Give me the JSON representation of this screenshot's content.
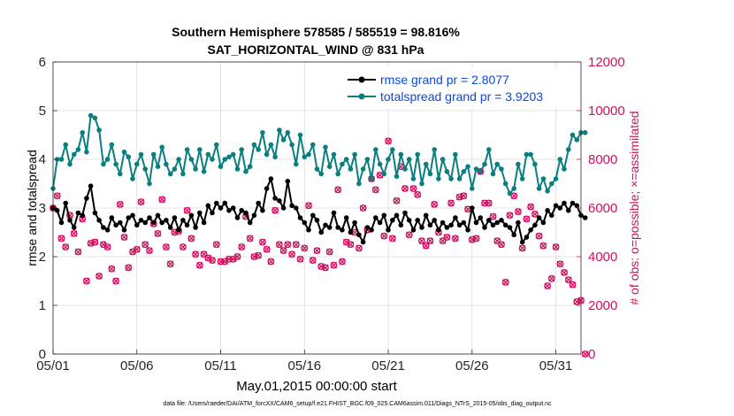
{
  "chart_data": {
    "type": "line",
    "title": "Southern Hemisphere 578585 / 585519 = 98.816%",
    "subtitle": "SAT_HORIZONTAL_WIND @ 831 hPa",
    "xlabel": "May.01,2015 00:00:00 start",
    "ylabel": "rmse and totalspread",
    "y2label": "# of obs: o=possible; ×=assimilated",
    "footnote": "data file: /Users/raeder/DAI/ATM_forcXX/CAM6_setup/f.e21.FHIST_BGC.f09_025.CAM6assim.011/Diags_NTrS_2015-05/obs_diag_output.nc",
    "xlim": [
      0,
      31.5
    ],
    "ylim": [
      0,
      6
    ],
    "y2lim": [
      0,
      12000
    ],
    "xticks": [
      {
        "label": "05/01",
        "value": 0
      },
      {
        "label": "05/06",
        "value": 5
      },
      {
        "label": "05/11",
        "value": 10
      },
      {
        "label": "05/16",
        "value": 15
      },
      {
        "label": "05/21",
        "value": 20
      },
      {
        "label": "05/26",
        "value": 25
      },
      {
        "label": "05/31",
        "value": 30
      }
    ],
    "yticks": [
      "0",
      "1",
      "2",
      "3",
      "4",
      "5",
      "6"
    ],
    "y2ticks": [
      "0",
      "2000",
      "4000",
      "6000",
      "8000",
      "10000",
      "12000"
    ],
    "legend_position": "top-right",
    "series": [
      {
        "name": "rmse grand pr = 2.8077",
        "color": "#000000",
        "axis": "left",
        "x0": 0,
        "dx": 0.25,
        "values": [
          3.0,
          2.95,
          2.7,
          3.1,
          2.75,
          2.6,
          2.9,
          2.85,
          3.2,
          3.45,
          2.9,
          2.75,
          2.6,
          2.55,
          2.8,
          2.65,
          2.7,
          2.55,
          2.8,
          2.85,
          2.65,
          2.75,
          2.7,
          2.8,
          2.7,
          2.85,
          2.7,
          2.75,
          2.6,
          2.8,
          2.55,
          2.75,
          2.65,
          2.85,
          2.6,
          2.9,
          2.7,
          3.05,
          2.9,
          3.1,
          3.0,
          3.1,
          2.95,
          3.0,
          2.8,
          2.95,
          2.9,
          2.7,
          2.85,
          3.1,
          2.95,
          3.4,
          3.6,
          3.2,
          3.15,
          3.0,
          3.55,
          3.05,
          3.0,
          2.8,
          2.7,
          2.55,
          2.85,
          2.75,
          2.5,
          2.65,
          2.6,
          2.9,
          2.6,
          2.55,
          2.8,
          2.5,
          2.7,
          2.45,
          2.3,
          2.6,
          2.55,
          2.8,
          2.7,
          2.85,
          2.55,
          2.75,
          2.85,
          2.65,
          2.9,
          2.75,
          2.55,
          2.75,
          2.6,
          2.85,
          2.65,
          2.75,
          2.55,
          2.7,
          2.6,
          2.65,
          2.8,
          2.65,
          2.7,
          2.55,
          3.0,
          2.7,
          2.8,
          2.6,
          2.75,
          2.65,
          2.7,
          2.75,
          2.65,
          2.6,
          2.45,
          2.7,
          2.3,
          2.4,
          2.55,
          2.65,
          2.8,
          2.7,
          2.95,
          2.85,
          3.05,
          3.0,
          3.1,
          2.95,
          3.1,
          3.05,
          2.85,
          2.8
        ]
      },
      {
        "name": "totalspread grand pr = 3.9203",
        "color": "#0a7f7f",
        "axis": "left",
        "x0": 0,
        "dx": 0.25,
        "values": [
          3.4,
          4.0,
          4.0,
          4.3,
          3.9,
          4.1,
          4.2,
          4.55,
          4.15,
          4.9,
          4.85,
          4.6,
          3.9,
          4.0,
          4.3,
          3.9,
          3.7,
          4.15,
          4.05,
          3.6,
          3.9,
          4.1,
          3.8,
          3.5,
          4.1,
          3.85,
          4.25,
          3.9,
          3.7,
          3.8,
          4.0,
          3.7,
          4.2,
          4.0,
          3.8,
          4.2,
          3.75,
          4.1,
          4.0,
          4.3,
          3.85,
          4.0,
          4.05,
          4.1,
          3.8,
          4.2,
          3.75,
          3.85,
          4.3,
          4.2,
          4.55,
          4.1,
          4.3,
          4.05,
          4.6,
          4.4,
          4.55,
          4.3,
          3.9,
          4.5,
          4.05,
          4.1,
          4.3,
          3.8,
          3.7,
          4.25,
          3.85,
          4.1,
          3.7,
          3.9,
          4.0,
          3.8,
          4.1,
          3.5,
          3.8,
          4.0,
          3.6,
          4.2,
          3.9,
          3.7,
          4.0,
          4.2,
          3.65,
          4.1,
          3.8,
          4.0,
          3.6,
          4.1,
          3.5,
          3.9,
          3.7,
          4.2,
          3.6,
          4.0,
          3.75,
          3.6,
          4.1,
          3.6,
          3.75,
          3.85,
          3.4,
          3.8,
          3.75,
          3.9,
          4.2,
          3.7,
          3.9,
          3.8,
          3.5,
          3.3,
          3.4,
          3.9,
          3.6,
          4.1,
          4.1,
          3.9,
          3.4,
          3.6,
          3.35,
          3.5,
          3.6,
          4.0,
          3.8,
          4.2,
          4.5,
          4.4,
          4.55,
          4.55
        ]
      },
      {
        "name": "possible obs",
        "color": "#d0105e",
        "axis": "right",
        "x0": 0,
        "dx": 0.25,
        "values": [
          6000,
          6500,
          4750,
          4400,
          5700,
          4950,
          4200,
          5550,
          3000,
          4550,
          4600,
          3200,
          4500,
          4400,
          3500,
          3000,
          6150,
          4800,
          3550,
          4200,
          4300,
          6250,
          4500,
          4250,
          5350,
          4950,
          6350,
          4400,
          3700,
          5000,
          5050,
          4400,
          5900,
          4750,
          4100,
          3650,
          4100,
          3950,
          3850,
          4500,
          3800,
          3800,
          3900,
          3900,
          4000,
          4400,
          5650,
          4750,
          4000,
          4050,
          4600,
          4300,
          3800,
          5900,
          4500,
          4250,
          4500,
          4100,
          4500,
          3900,
          4350,
          6100,
          3850,
          4250,
          3600,
          3550,
          4200,
          3650,
          6750,
          3800,
          4600,
          4500,
          5000,
          4350,
          6000,
          5100,
          7200,
          6750,
          7350,
          4850,
          8750,
          4750,
          6300,
          7700,
          6800,
          4900,
          6800,
          6550,
          4650,
          4450,
          4650,
          6150,
          5000,
          4650,
          4800,
          6200,
          4750,
          6450,
          6500,
          5950,
          4700,
          4750,
          7500,
          6200,
          6200,
          5650,
          4650,
          4500,
          2950,
          5700,
          6500,
          5850,
          4350,
          5550,
          6050,
          5750,
          4850,
          4450,
          2800,
          3100,
          4400,
          3700,
          3350,
          3050,
          2850,
          2150,
          2200,
          0
        ]
      }
    ]
  }
}
